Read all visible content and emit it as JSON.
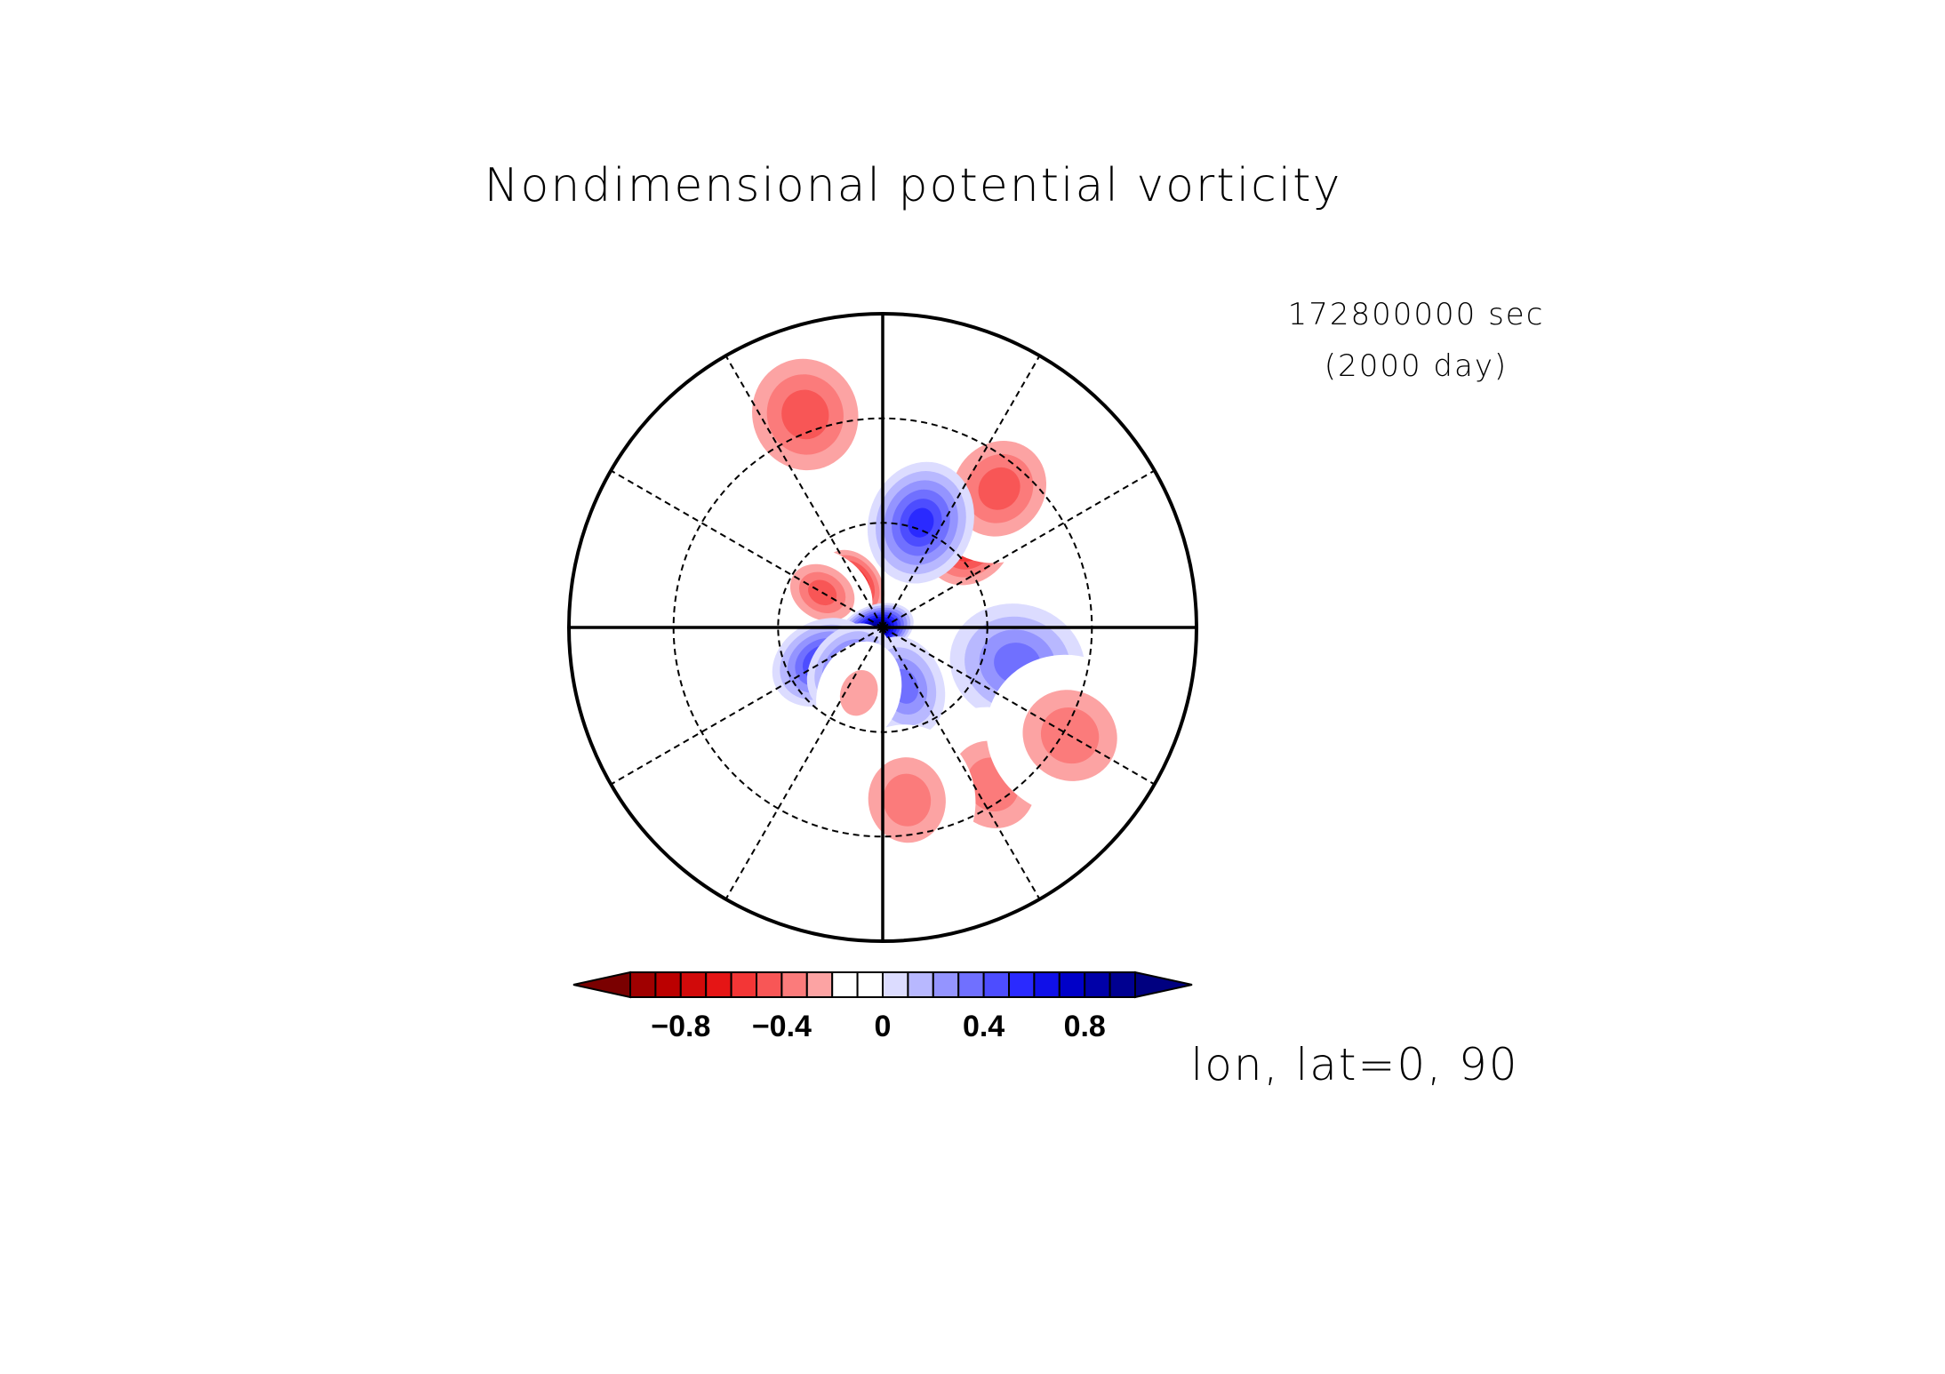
{
  "chart_data": {
    "type": "heatmap",
    "projection": "polar-stereographic",
    "title": "Nondimensional potential vorticity",
    "time_label": "172800000 sec",
    "time_label_days": "(2000 day)",
    "axes_label": "lon, lat=0, 90",
    "colorbar": {
      "levels": [
        -1.0,
        -0.9,
        -0.8,
        -0.7,
        -0.6,
        -0.5,
        -0.4,
        -0.3,
        -0.2,
        -0.1,
        0.0,
        0.1,
        0.2,
        0.3,
        0.4,
        0.5,
        0.6,
        0.7,
        0.8,
        0.9,
        1.0
      ],
      "tick_values": [
        -0.8,
        -0.4,
        0,
        0.4,
        0.8
      ],
      "tick_labels": [
        "−0.8",
        "−0.4",
        "0",
        "0.4",
        "0.8"
      ],
      "extend": "both",
      "under_color": "#7a0000",
      "over_color": "#000080",
      "colors": [
        "#a00000",
        "#bb0000",
        "#d10a0a",
        "#e51515",
        "#f33636",
        "#f85656",
        "#fb7b7b",
        "#fca3a3",
        "#ffffff",
        "#ffffff",
        "#dcdcff",
        "#b8b8ff",
        "#9494ff",
        "#7070ff",
        "#4d4dff",
        "#2a2aff",
        "#1010e8",
        "#0000c8",
        "#0000a8",
        "#000090"
      ]
    },
    "graticule": {
      "longitudes_deg": [
        0,
        30,
        60,
        90,
        120,
        150,
        180,
        210,
        240,
        270,
        300,
        330
      ],
      "latitude_circles_deg": [
        60,
        30
      ]
    },
    "features": [
      {
        "lon": 135,
        "lat": 55,
        "value": -0.7
      },
      {
        "lon": 140,
        "lat": 38,
        "value": -0.45
      },
      {
        "lon": 215,
        "lat": 75,
        "value": -0.75
      },
      {
        "lon": 240,
        "lat": 70,
        "value": -0.5
      },
      {
        "lon": 200,
        "lat": 25,
        "value": -0.45
      },
      {
        "lon": 290,
        "lat": 88,
        "value": 1.05
      },
      {
        "lon": 300,
        "lat": 70,
        "value": 0.55
      },
      {
        "lon": 320,
        "lat": 75,
        "value": 0.45
      },
      {
        "lon": 160,
        "lat": 58,
        "value": 0.6
      },
      {
        "lon": 20,
        "lat": 72,
        "value": 0.35
      },
      {
        "lon": 75,
        "lat": 50,
        "value": 0.35
      },
      {
        "lon": 340,
        "lat": 70,
        "value": -0.3
      },
      {
        "lon": 35,
        "lat": 35,
        "value": -0.4
      },
      {
        "lon": 8,
        "lat": 40,
        "value": -0.35
      },
      {
        "lon": 60,
        "lat": 28,
        "value": -0.35
      }
    ]
  }
}
